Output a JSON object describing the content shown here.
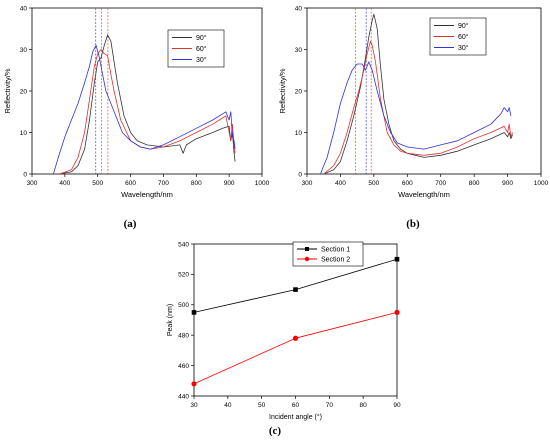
{
  "captions": {
    "a": "(a)",
    "b": "(b)",
    "c": "(c)"
  },
  "chart_data": [
    {
      "id": "a",
      "type": "line",
      "xlabel": "Wavelength/nm",
      "ylabel": "Reflectivity/%",
      "xlim": [
        300,
        1000
      ],
      "ylim": [
        0,
        40
      ],
      "xticks": [
        300,
        400,
        500,
        600,
        700,
        800,
        900,
        1000
      ],
      "yticks": [
        0,
        10,
        20,
        30,
        40
      ],
      "legend_position": "top-right",
      "vlines": [
        {
          "x": 494,
          "color": "#4040ff"
        },
        {
          "x": 512,
          "color": "#ff4040"
        },
        {
          "x": 531,
          "color": "#ff4040"
        }
      ],
      "series": [
        {
          "name": "90°",
          "color": "#333333",
          "points": [
            [
              380,
              0
            ],
            [
              420,
              0.5
            ],
            [
              440,
              2
            ],
            [
              460,
              6
            ],
            [
              475,
              13
            ],
            [
              490,
              22
            ],
            [
              500,
              27
            ],
            [
              510,
              28
            ],
            [
              520,
              31
            ],
            [
              530,
              33.5
            ],
            [
              540,
              32
            ],
            [
              550,
              27
            ],
            [
              560,
              22
            ],
            [
              580,
              14
            ],
            [
              600,
              10
            ],
            [
              620,
              8
            ],
            [
              650,
              7
            ],
            [
              700,
              6.5
            ],
            [
              750,
              7
            ],
            [
              760,
              5
            ],
            [
              770,
              7
            ],
            [
              800,
              8.5
            ],
            [
              850,
              10
            ],
            [
              880,
              11
            ],
            [
              900,
              11.5
            ],
            [
              905,
              8
            ],
            [
              910,
              10
            ],
            [
              915,
              5
            ],
            [
              918,
              3
            ]
          ]
        },
        {
          "name": "60°",
          "color": "#e03030",
          "points": [
            [
              385,
              0
            ],
            [
              420,
              1
            ],
            [
              440,
              4
            ],
            [
              460,
              10
            ],
            [
              475,
              18
            ],
            [
              490,
              26
            ],
            [
              500,
              29
            ],
            [
              510,
              30
            ],
            [
              520,
              29
            ],
            [
              530,
              28.5
            ],
            [
              540,
              24
            ],
            [
              550,
              20
            ],
            [
              570,
              13
            ],
            [
              600,
              8
            ],
            [
              630,
              6.5
            ],
            [
              660,
              6
            ],
            [
              700,
              6.5
            ],
            [
              750,
              8
            ],
            [
              800,
              10
            ],
            [
              850,
              12
            ],
            [
              890,
              14
            ],
            [
              905,
              8
            ],
            [
              910,
              12
            ],
            [
              915,
              7
            ],
            [
              918,
              5
            ]
          ]
        },
        {
          "name": "30°",
          "color": "#3030e0",
          "points": [
            [
              365,
              0
            ],
            [
              380,
              4
            ],
            [
              400,
              9
            ],
            [
              420,
              13
            ],
            [
              440,
              17
            ],
            [
              460,
              22
            ],
            [
              475,
              26
            ],
            [
              485,
              29.5
            ],
            [
              495,
              31
            ],
            [
              505,
              28
            ],
            [
              515,
              24
            ],
            [
              525,
              20
            ],
            [
              540,
              17
            ],
            [
              555,
              14
            ],
            [
              575,
              10
            ],
            [
              600,
              8
            ],
            [
              630,
              6.5
            ],
            [
              660,
              6
            ],
            [
              700,
              7
            ],
            [
              750,
              9
            ],
            [
              800,
              11
            ],
            [
              850,
              13
            ],
            [
              890,
              15
            ],
            [
              900,
              13
            ],
            [
              905,
              15
            ],
            [
              910,
              9
            ],
            [
              915,
              8
            ],
            [
              918,
              6
            ]
          ]
        }
      ]
    },
    {
      "id": "b",
      "type": "line",
      "xlabel": "Wavelength/nm",
      "ylabel": "Reflectivity/%",
      "xlim": [
        300,
        1000
      ],
      "ylim": [
        0,
        40
      ],
      "xticks": [
        300,
        400,
        500,
        600,
        700,
        800,
        900,
        1000
      ],
      "yticks": [
        0,
        10,
        20,
        30,
        40
      ],
      "legend_position": "top-right",
      "vlines": [
        {
          "x": 445,
          "color": "#ff4040"
        },
        {
          "x": 477,
          "color": "#4040ff"
        },
        {
          "x": 492,
          "color": "#ff4040"
        }
      ],
      "series": [
        {
          "name": "90°",
          "color": "#333333",
          "points": [
            [
              350,
              0
            ],
            [
              380,
              1
            ],
            [
              400,
              3
            ],
            [
              420,
              8
            ],
            [
              440,
              14
            ],
            [
              460,
              21
            ],
            [
              475,
              28
            ],
            [
              485,
              33
            ],
            [
              495,
              37
            ],
            [
              500,
              38.5
            ],
            [
              510,
              35
            ],
            [
              520,
              26
            ],
            [
              530,
              18
            ],
            [
              545,
              12
            ],
            [
              560,
              8
            ],
            [
              580,
              6
            ],
            [
              600,
              5
            ],
            [
              650,
              4
            ],
            [
              700,
              4.5
            ],
            [
              750,
              5.5
            ],
            [
              800,
              7
            ],
            [
              850,
              8.5
            ],
            [
              890,
              10
            ],
            [
              900,
              9
            ],
            [
              905,
              10
            ],
            [
              910,
              8.5
            ],
            [
              915,
              9.5
            ]
          ]
        },
        {
          "name": "60°",
          "color": "#e03030",
          "points": [
            [
              350,
              0
            ],
            [
              380,
              2
            ],
            [
              400,
              5
            ],
            [
              420,
              10
            ],
            [
              440,
              16
            ],
            [
              455,
              20
            ],
            [
              470,
              25
            ],
            [
              480,
              29
            ],
            [
              490,
              32
            ],
            [
              495,
              31
            ],
            [
              505,
              27
            ],
            [
              520,
              18
            ],
            [
              540,
              10
            ],
            [
              560,
              7
            ],
            [
              580,
              5.5
            ],
            [
              600,
              5
            ],
            [
              650,
              4.5
            ],
            [
              700,
              5
            ],
            [
              750,
              6.5
            ],
            [
              800,
              8.5
            ],
            [
              850,
              10
            ],
            [
              890,
              11.5
            ],
            [
              900,
              10
            ],
            [
              905,
              12
            ],
            [
              910,
              9
            ],
            [
              915,
              10
            ]
          ]
        },
        {
          "name": "30°",
          "color": "#3030e0",
          "points": [
            [
              340,
              0
            ],
            [
              360,
              4
            ],
            [
              380,
              10
            ],
            [
              400,
              17
            ],
            [
              420,
              22
            ],
            [
              435,
              25
            ],
            [
              450,
              26.5
            ],
            [
              465,
              26.5
            ],
            [
              475,
              25
            ],
            [
              485,
              27
            ],
            [
              495,
              25
            ],
            [
              510,
              20
            ],
            [
              530,
              14
            ],
            [
              550,
              10
            ],
            [
              570,
              7.5
            ],
            [
              600,
              6.5
            ],
            [
              650,
              6
            ],
            [
              700,
              7
            ],
            [
              750,
              8
            ],
            [
              800,
              10
            ],
            [
              850,
              12
            ],
            [
              880,
              14.5
            ],
            [
              890,
              16
            ],
            [
              900,
              15
            ],
            [
              905,
              16
            ],
            [
              910,
              14
            ]
          ]
        }
      ]
    },
    {
      "id": "c",
      "type": "line",
      "xlabel": "Incident angle (°)",
      "ylabel": "Peak (nm)",
      "xlim": [
        30,
        90
      ],
      "ylim": [
        440,
        540
      ],
      "xticks": [
        30,
        40,
        50,
        60,
        70,
        80,
        90
      ],
      "yticks": [
        440,
        460,
        480,
        500,
        520,
        540
      ],
      "legend_position": "top-left",
      "series": [
        {
          "name": "Section 1",
          "color": "#000000",
          "marker": "square",
          "points": [
            [
              30,
              495
            ],
            [
              60,
              510
            ],
            [
              90,
              530
            ]
          ]
        },
        {
          "name": "Section 2",
          "color": "#ff0000",
          "marker": "circle",
          "points": [
            [
              30,
              448
            ],
            [
              60,
              478
            ],
            [
              90,
              495
            ]
          ]
        }
      ]
    }
  ]
}
